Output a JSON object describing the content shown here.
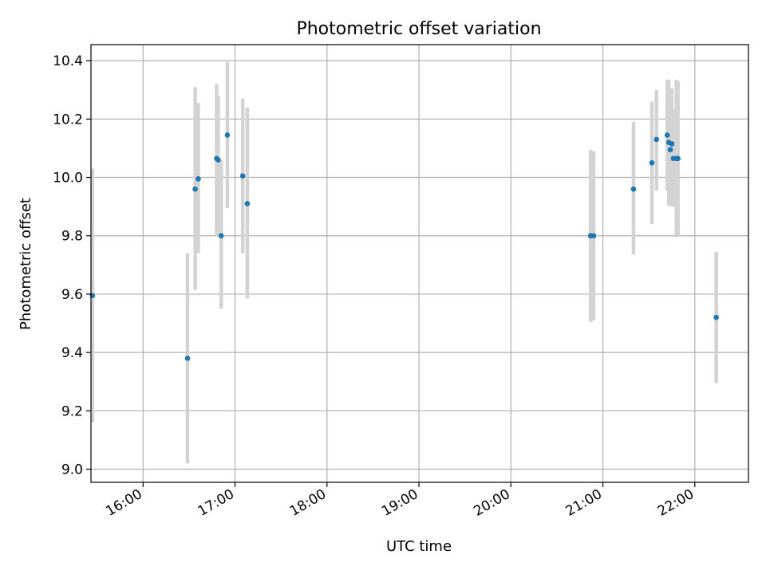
{
  "chart_data": {
    "type": "scatter",
    "title": "Photometric offset variation",
    "xlabel": "UTC time",
    "ylabel": "Photometric offset",
    "x_axis_type": "time",
    "xlim": [
      "15:26",
      "22:35"
    ],
    "ylim": [
      8.955,
      10.455
    ],
    "xticks": [
      "16:00",
      "17:00",
      "18:00",
      "19:00",
      "20:00",
      "21:00",
      "22:00"
    ],
    "yticks": [
      "9.0",
      "9.2",
      "9.4",
      "9.6",
      "9.8",
      "10.0",
      "10.2",
      "10.4"
    ],
    "grid": true,
    "legend": "none",
    "marker_color": "#1f77b4",
    "errorbar_color": "#d3d3d3",
    "points": [
      {
        "t": "15:27",
        "y": 9.595,
        "lo": 9.16,
        "hi": 10.03
      },
      {
        "t": "16:29",
        "y": 9.38,
        "lo": 9.02,
        "hi": 9.74
      },
      {
        "t": "16:34",
        "y": 9.96,
        "lo": 9.615,
        "hi": 10.31
      },
      {
        "t": "16:36",
        "y": 9.995,
        "lo": 9.74,
        "hi": 10.255
      },
      {
        "t": "16:48",
        "y": 10.065,
        "lo": 9.8,
        "hi": 10.32
      },
      {
        "t": "16:49",
        "y": 10.06,
        "lo": 9.8,
        "hi": 10.28
      },
      {
        "t": "16:51",
        "y": 9.8,
        "lo": 9.55,
        "hi": 10.06
      },
      {
        "t": "16:55",
        "y": 10.145,
        "lo": 9.895,
        "hi": 10.395
      },
      {
        "t": "17:05",
        "y": 10.005,
        "lo": 9.74,
        "hi": 10.27
      },
      {
        "t": "17:08",
        "y": 9.91,
        "lo": 9.585,
        "hi": 10.24
      },
      {
        "t": "20:52",
        "y": 9.8,
        "lo": 9.505,
        "hi": 10.095
      },
      {
        "t": "20:54",
        "y": 9.8,
        "lo": 9.51,
        "hi": 10.09
      },
      {
        "t": "21:20",
        "y": 9.96,
        "lo": 9.735,
        "hi": 10.19
      },
      {
        "t": "21:32",
        "y": 10.05,
        "lo": 9.84,
        "hi": 10.26
      },
      {
        "t": "21:35",
        "y": 10.13,
        "lo": 9.955,
        "hi": 10.3
      },
      {
        "t": "21:42",
        "y": 10.145,
        "lo": 9.955,
        "hi": 10.335
      },
      {
        "t": "21:43",
        "y": 10.12,
        "lo": 9.905,
        "hi": 10.335
      },
      {
        "t": "21:44",
        "y": 10.095,
        "lo": 9.9,
        "hi": 10.29
      },
      {
        "t": "21:45",
        "y": 10.115,
        "lo": 9.92,
        "hi": 10.305
      },
      {
        "t": "21:46",
        "y": 10.065,
        "lo": 9.9,
        "hi": 10.235
      },
      {
        "t": "21:48",
        "y": 10.065,
        "lo": 9.795,
        "hi": 10.335
      },
      {
        "t": "21:49",
        "y": 10.065,
        "lo": 9.8,
        "hi": 10.33
      },
      {
        "t": "22:14",
        "y": 9.52,
        "lo": 9.295,
        "hi": 9.745
      }
    ]
  }
}
